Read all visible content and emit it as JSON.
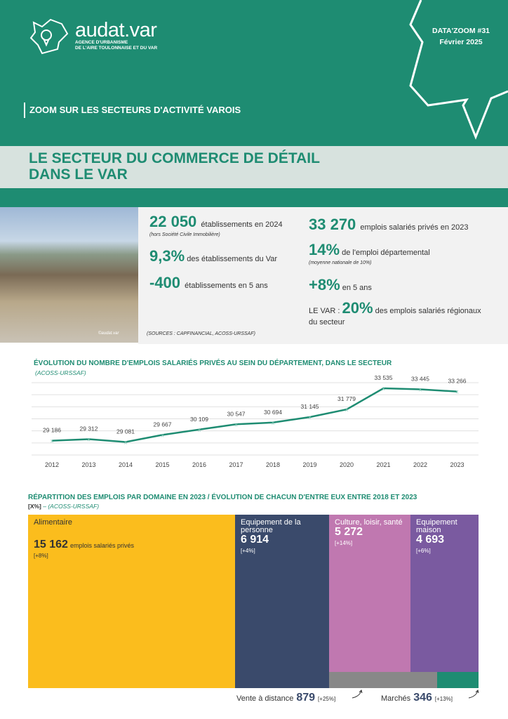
{
  "header": {
    "logo_name": "audat.var",
    "logo_sub_1": "AGENCE D'URBANISME",
    "logo_sub_2": "DE L'AIRE TOULONNAISE ET DU VAR",
    "issue": "DATA'ZOOM #31",
    "date": "Février 2025",
    "section": "ZOOM SUR LES SECTEURS D'ACTIVITÉ VAROIS",
    "title_1": "LE SECTEUR DU COMMERCE DE DÉTAIL",
    "title_2": "DANS LE VAR"
  },
  "photo": {
    "caption": "©audat.var"
  },
  "stats": {
    "s1_value": "22 050",
    "s1_text": "établissements en 2024",
    "s1_note": "(hors Société Civile Immobilière)",
    "s2_value": "9,3%",
    "s2_text": "des établissements du Var",
    "s3_value": "-400",
    "s3_text": "établissements en 5 ans",
    "s4_value": "33 270",
    "s4_text": "emplois salariés privés en 2023",
    "s5_value": "14%",
    "s5_text": "de l'emploi départemental",
    "s5_note": "(moyenne nationale de 10%)",
    "s6_value": "+8%",
    "s6_text": "en 5 ans",
    "s7_prefix": "LE VAR :",
    "s7_value": "20%",
    "s7_text": "des emplois salariés régionaux",
    "s7_text2": "du secteur",
    "sources": "(SOURCES : CAPFINANCIAL, ACOSS-URSSAF)"
  },
  "chart_data": {
    "type": "line",
    "title": "ÉVOLUTION DU NOMBRE D'EMPLOIS SALARIÉS PRIVÉS AU SEIN DU DÉPARTEMENT, DANS LE SECTEUR",
    "subtitle": "(ACOSS-URSSAF)",
    "x": [
      "2012",
      "2013",
      "2014",
      "2015",
      "2016",
      "2017",
      "2018",
      "2019",
      "2020",
      "2021",
      "2022",
      "2023"
    ],
    "values": [
      29186,
      29312,
      29081,
      29667,
      30109,
      30547,
      30694,
      31145,
      31779,
      33535,
      33445,
      33266
    ],
    "labels": [
      "29 186",
      "29 312",
      "29 081",
      "29 667",
      "30 109",
      "30 547",
      "30 694",
      "31 145",
      "31 779",
      "33 535",
      "33 445",
      "33 266"
    ],
    "ylim": [
      28000,
      34000
    ],
    "grid": true,
    "color": "#1e8c72"
  },
  "treemap": {
    "title": "RÉPARTITION DES EMPLOIS PAR DOMAINE EN 2023 / ÉVOLUTION DE CHACUN D'ENTRE EUX ENTRE 2018 ET 2023",
    "legend": "[X%]",
    "source": " – (ACOSS-URSSAF)",
    "items": [
      {
        "name": "Alimentaire",
        "value": "15 162",
        "unit": "emplois salariés privés",
        "evol": "[+8%]",
        "color": "#fbbd1d"
      },
      {
        "name": "Equipement de la personne",
        "value": "6 914",
        "evol": "[+4%]",
        "color": "#3a4a6b"
      },
      {
        "name": "Culture, loisir, santé",
        "value": "5 272",
        "evol": "[+14%]",
        "color": "#c078b0"
      },
      {
        "name": "Equipement maison",
        "value": "4 693",
        "evol": "[+6%]",
        "color": "#7a5aa0"
      },
      {
        "name": "Vente à distance",
        "value": "879",
        "evol": "[+25%]",
        "color": "#888888"
      },
      {
        "name": "Marchés",
        "value": "346",
        "evol": "[+13%]",
        "color": "#1e8c72"
      }
    ]
  }
}
